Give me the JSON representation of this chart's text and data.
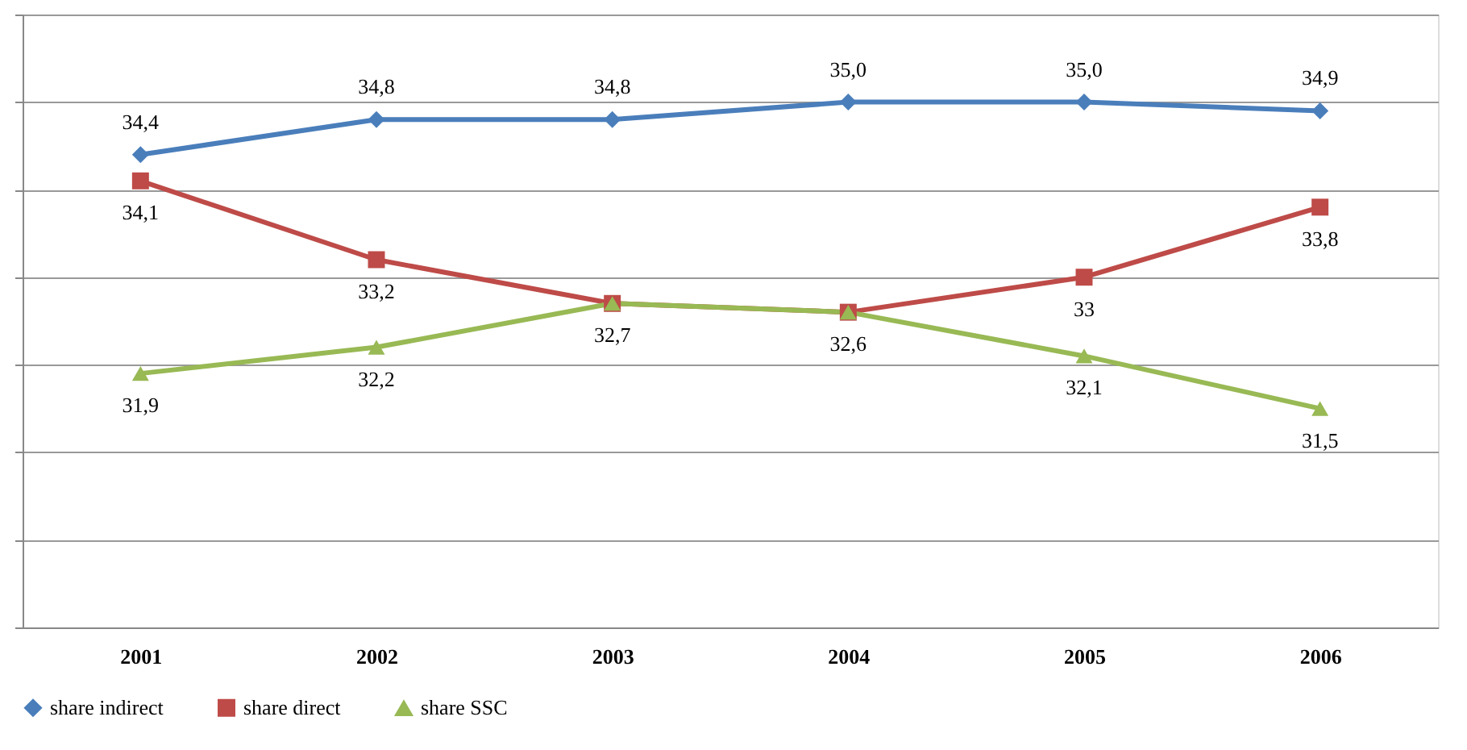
{
  "chart_data": {
    "type": "line",
    "categories": [
      "2001",
      "2002",
      "2003",
      "2004",
      "2005",
      "2006"
    ],
    "series": [
      {
        "name": "share indirect",
        "color": "#4a7ebb",
        "marker": "diamond",
        "values": [
          34.4,
          34.8,
          34.8,
          35.0,
          35.0,
          34.9
        ],
        "value_labels": [
          "34,4",
          "34,8",
          "34,8",
          "35,0",
          "35,0",
          "34,9"
        ]
      },
      {
        "name": "share direct",
        "color": "#be4b48",
        "marker": "square",
        "values": [
          34.1,
          33.2,
          32.7,
          32.6,
          33,
          33.8
        ],
        "value_labels": [
          "34,1",
          "33,2",
          null,
          "32,6",
          "33",
          "33,8"
        ]
      },
      {
        "name": "share SSC",
        "color": "#98b954",
        "marker": "triangle",
        "values": [
          31.9,
          32.2,
          32.7,
          32.6,
          32.1,
          31.5
        ],
        "value_labels": [
          "31,9",
          "32,2",
          "32,7",
          null,
          "32,1",
          "31,5"
        ]
      }
    ],
    "ylim": [
      29,
      36
    ],
    "yticks": [
      {
        "value": 29,
        "label": null
      },
      {
        "value": 30,
        "label": null
      },
      {
        "value": 31,
        "label": null
      },
      {
        "value": 32,
        "label": null
      },
      {
        "value": 33,
        "label": null
      },
      {
        "value": 34,
        "label": null
      },
      {
        "value": 35,
        "label": null
      },
      {
        "value": 36,
        "label": null
      }
    ],
    "tick_labels": "x",
    "grid": "y",
    "legend": "bottom",
    "line_style": "solid"
  }
}
